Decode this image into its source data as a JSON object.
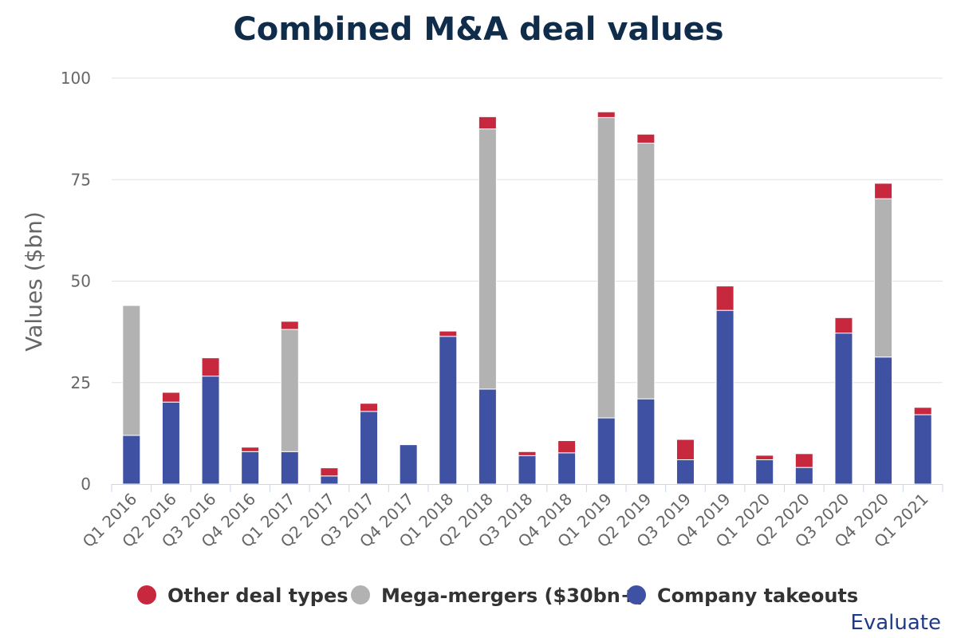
{
  "chart_data": {
    "type": "bar",
    "stacked": true,
    "title": "Combined M&A deal values",
    "xlabel": "",
    "ylabel": "Values ($bn)",
    "ylim": [
      0,
      100
    ],
    "yticks": [
      "0",
      "25",
      "50",
      "75",
      "100"
    ],
    "grid": true,
    "legend_position": "bottom",
    "categories": [
      "Q1 2016",
      "Q2 2016",
      "Q3 2016",
      "Q4 2016",
      "Q1 2017",
      "Q2 2017",
      "Q3 2017",
      "Q4 2017",
      "Q1 2018",
      "Q2 2018",
      "Q3 2018",
      "Q4 2018",
      "Q1 2019",
      "Q2 2019",
      "Q3 2019",
      "Q4 2019",
      "Q1 2020",
      "Q2 2020",
      "Q3 2020",
      "Q4 2020",
      "Q1 2021"
    ],
    "series": [
      {
        "name": "Company takeouts",
        "color": "#3f51a3",
        "values": [
          12,
          20.2,
          26.6,
          8,
          8,
          2,
          17.9,
          9.7,
          36.4,
          23.4,
          7,
          7.7,
          16.3,
          21,
          6,
          42.8,
          6,
          4.1,
          37.2,
          31.3,
          17.1
        ]
      },
      {
        "name": "Mega-mergers ($30bn+)",
        "color": "#b2b2b2",
        "values": [
          32,
          0,
          0,
          0,
          30.1,
          0,
          0,
          0,
          0,
          64.1,
          0,
          0,
          74,
          63,
          0,
          0,
          0,
          0,
          0,
          39,
          0
        ]
      },
      {
        "name": "Other deal types",
        "color": "#c8283e",
        "values": [
          0,
          2.4,
          4.5,
          1.1,
          2,
          2,
          2,
          0,
          1.3,
          3,
          1,
          3,
          1.4,
          2.2,
          5,
          6,
          1.1,
          3.4,
          3.8,
          3.8,
          1.8
        ]
      }
    ],
    "legend_order": [
      "Other deal types",
      "Mega-mergers ($30bn+)",
      "Company takeouts"
    ]
  },
  "credit": "Evaluate"
}
